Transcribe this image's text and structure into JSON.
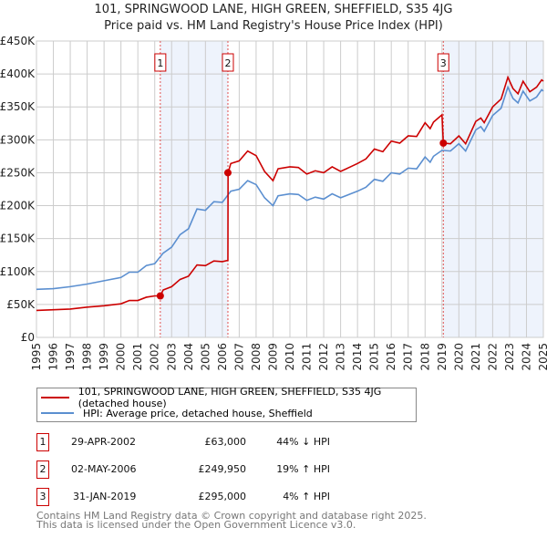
{
  "chart_data": {
    "type": "line",
    "title": "101, SPRINGWOOD LANE, HIGH GREEN, SHEFFIELD, S35 4JG",
    "subtitle": "Price paid vs. HM Land Registry's House Price Index (HPI)",
    "xlim": [
      1995,
      2025
    ],
    "ylim": [
      0,
      450000
    ],
    "y_ticks": [
      0,
      50000,
      100000,
      150000,
      200000,
      250000,
      300000,
      350000,
      400000,
      450000
    ],
    "y_tick_labels": [
      "£0",
      "£50K",
      "£100K",
      "£150K",
      "£200K",
      "£250K",
      "£300K",
      "£350K",
      "£400K",
      "£450K"
    ],
    "x_ticks": [
      1995,
      1996,
      1997,
      1998,
      1999,
      2000,
      2001,
      2002,
      2003,
      2004,
      2005,
      2006,
      2007,
      2008,
      2009,
      2010,
      2011,
      2012,
      2013,
      2014,
      2015,
      2016,
      2017,
      2018,
      2019,
      2020,
      2021,
      2022,
      2023,
      2024,
      2025
    ],
    "grid": true,
    "series": [
      {
        "name": "101, SPRINGWOOD LANE, HIGH GREEN, SHEFFIELD, S35 4JG (detached house)",
        "color": "#cc0000",
        "x": [
          1995,
          1996,
          1997,
          1998,
          1999,
          2000,
          2000.5,
          2001,
          2001.5,
          2002,
          2002.33,
          2002.5,
          2003,
          2003.5,
          2004,
          2004.5,
          2005,
          2005.5,
          2006,
          2006.33,
          2006.34,
          2006.5,
          2007,
          2007.5,
          2008,
          2008.5,
          2009,
          2009.3,
          2010,
          2010.5,
          2011,
          2011.5,
          2012,
          2012.5,
          2013,
          2013.5,
          2014,
          2014.5,
          2015,
          2015.5,
          2016,
          2016.5,
          2017,
          2017.5,
          2018,
          2018.3,
          2018.5,
          2019,
          2019.08,
          2019.5,
          2020,
          2020.4,
          2021,
          2021.3,
          2021.5,
          2022,
          2022.5,
          2022.9,
          2023.2,
          2023.5,
          2023.8,
          2024.2,
          2024.6,
          2024.9,
          2025
        ],
        "y": [
          41000,
          42000,
          43000,
          46000,
          48000,
          51000,
          56000,
          56000,
          61000,
          63000,
          63000,
          72000,
          77000,
          88000,
          93000,
          110000,
          109000,
          116000,
          115000,
          117000,
          249950,
          264000,
          268000,
          283000,
          276000,
          252000,
          238000,
          256000,
          259000,
          258000,
          248000,
          253000,
          250000,
          259000,
          252000,
          258000,
          264000,
          271000,
          286000,
          282000,
          298000,
          295000,
          306000,
          305000,
          326000,
          317000,
          327000,
          338000,
          295000,
          294000,
          306000,
          294000,
          328000,
          333000,
          326000,
          350000,
          362000,
          395000,
          378000,
          370000,
          389000,
          373000,
          380000,
          391000,
          389000
        ]
      },
      {
        "name": "HPI: Average price, detached house, Sheffield",
        "color": "#5b8fd0",
        "x": [
          1995,
          1996,
          1997,
          1998,
          1999,
          2000,
          2000.5,
          2001,
          2001.5,
          2002,
          2002.5,
          2003,
          2003.5,
          2004,
          2004.5,
          2005,
          2005.5,
          2006,
          2006.5,
          2007,
          2007.5,
          2008,
          2008.5,
          2009,
          2009.3,
          2010,
          2010.5,
          2011,
          2011.5,
          2012,
          2012.5,
          2013,
          2013.5,
          2014,
          2014.5,
          2015,
          2015.5,
          2016,
          2016.5,
          2017,
          2017.5,
          2018,
          2018.3,
          2018.5,
          2019,
          2019.5,
          2020,
          2020.4,
          2021,
          2021.3,
          2021.5,
          2022,
          2022.5,
          2022.9,
          2023.2,
          2023.5,
          2023.8,
          2024.2,
          2024.6,
          2024.9,
          2025
        ],
        "y": [
          73000,
          74000,
          77000,
          81000,
          86000,
          91000,
          99000,
          99000,
          109000,
          112000,
          128000,
          137000,
          156000,
          165000,
          195000,
          193000,
          206000,
          205000,
          222000,
          225000,
          238000,
          232000,
          212000,
          200000,
          215000,
          218000,
          217000,
          208000,
          213000,
          210000,
          218000,
          212000,
          217000,
          222000,
          228000,
          240000,
          237000,
          250000,
          248000,
          257000,
          256000,
          274000,
          266000,
          275000,
          284000,
          283000,
          294000,
          283000,
          315000,
          320000,
          313000,
          337000,
          348000,
          380000,
          363000,
          356000,
          374000,
          359000,
          365000,
          376000,
          374000
        ]
      }
    ],
    "sales": [
      {
        "id": "1",
        "x": 2002.33,
        "date": "29-APR-2002",
        "price": 63000,
        "price_label": "£63,000",
        "hpi_diff": "44% ↓ HPI"
      },
      {
        "id": "2",
        "x": 2006.33,
        "date": "02-MAY-2006",
        "price": 249950,
        "price_label": "£249,950",
        "hpi_diff": "19% ↑ HPI"
      },
      {
        "id": "3",
        "x": 2019.08,
        "date": "31-JAN-2019",
        "price": 295000,
        "price_label": "£295,000",
        "hpi_diff": "4% ↑ HPI"
      }
    ],
    "shaded_ranges": [
      [
        2002.33,
        2006.33
      ],
      [
        2019.08,
        2025
      ]
    ],
    "legend_placement": "bottom"
  },
  "footer": {
    "line1": "Contains HM Land Registry data © Crown copyright and database right 2025.",
    "line2": "This data is licensed under the Open Government Licence v3.0."
  }
}
